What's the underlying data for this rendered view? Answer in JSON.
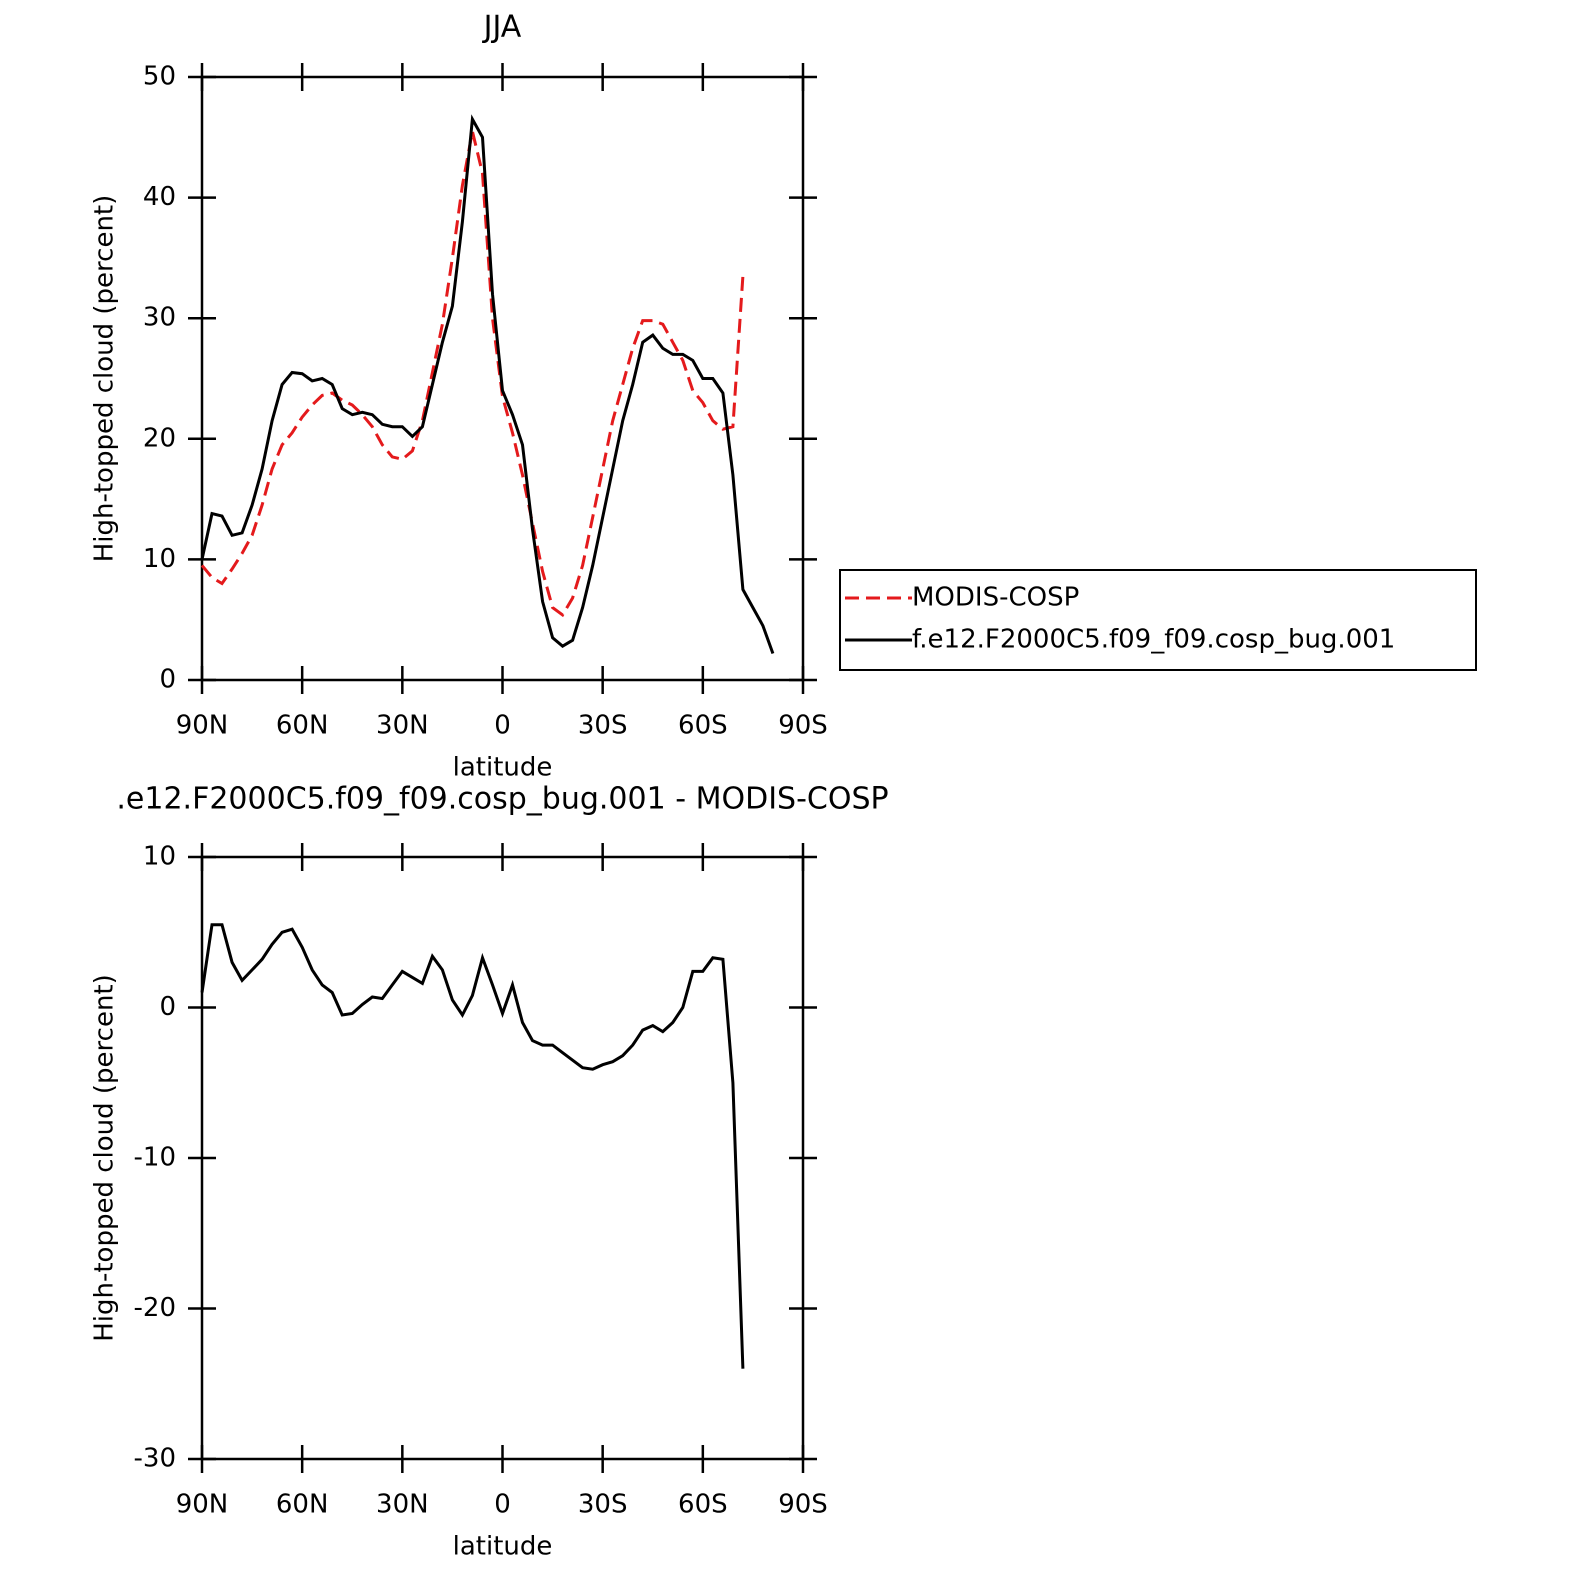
{
  "chart_data": [
    {
      "type": "line",
      "title": "JJA",
      "x_label": "latitude",
      "y_label": "High-topped cloud (percent)",
      "x": [
        90,
        87,
        84,
        81,
        78,
        75,
        72,
        69,
        66,
        63,
        60,
        57,
        54,
        51,
        48,
        45,
        42,
        39,
        36,
        33,
        30,
        27,
        24,
        21,
        18,
        15,
        12,
        9,
        6,
        3,
        0,
        -3,
        -6,
        -9,
        -12,
        -15,
        -18,
        -21,
        -24,
        -27,
        -30,
        -33,
        -36,
        -39,
        -42,
        -45,
        -48,
        -51,
        -54,
        -57,
        -60,
        -63,
        -66,
        -69,
        -72,
        -75,
        -78,
        -81
      ],
      "series": [
        {
          "name": "MODIS-COSP",
          "color": "#e41a1c",
          "style": "dashed",
          "values": [
            9.5,
            8.5,
            8.0,
            9.2,
            10.5,
            12.0,
            14.5,
            17.5,
            19.5,
            20.5,
            21.8,
            22.8,
            23.6,
            23.8,
            23.2,
            22.8,
            22.0,
            21.0,
            19.5,
            18.5,
            18.3,
            19.0,
            21.5,
            25.5,
            29.5,
            35.0,
            41.0,
            45.5,
            42.0,
            30.0,
            23.5,
            20.5,
            17.0,
            13.0,
            9.0,
            6.0,
            5.4,
            6.8,
            9.5,
            13.5,
            17.5,
            21.5,
            24.5,
            27.5,
            29.8,
            29.8,
            29.5,
            28.0,
            26.5,
            24.0,
            23.0,
            21.5,
            20.8,
            21.0,
            33.5,
            null,
            null,
            null
          ]
        },
        {
          "name": "f.e12.F2000C5.f09_f09.cosp_bug.001",
          "color": "#000000",
          "style": "solid",
          "values": [
            10.0,
            13.8,
            13.6,
            12.0,
            12.2,
            14.5,
            17.5,
            21.5,
            24.5,
            25.5,
            25.4,
            24.8,
            25.0,
            24.5,
            22.5,
            22.0,
            22.2,
            22.0,
            21.2,
            21.0,
            21.0,
            20.2,
            21.0,
            24.5,
            28.0,
            31.0,
            38.0,
            46.5,
            45.0,
            32.0,
            24.0,
            22.0,
            19.5,
            12.5,
            6.5,
            3.5,
            2.8,
            3.3,
            6.0,
            9.5,
            13.5,
            17.5,
            21.5,
            24.5,
            28.0,
            28.6,
            27.5,
            27.0,
            27.0,
            26.5,
            25.0,
            25.0,
            23.8,
            17.0,
            7.5,
            6.0,
            4.5,
            2.2
          ]
        }
      ],
      "xlim": [
        90,
        -90
      ],
      "xticks": [
        {
          "value": 90,
          "label": "90N"
        },
        {
          "value": 60,
          "label": "60N"
        },
        {
          "value": 30,
          "label": "30N"
        },
        0,
        {
          "value": -30,
          "label": "30S"
        },
        {
          "value": -60,
          "label": "60S"
        },
        {
          "value": -90,
          "label": "90S"
        }
      ],
      "ylim": [
        0,
        50
      ],
      "yticks": [
        0,
        10,
        20,
        30,
        40,
        50
      ],
      "legend": "right"
    },
    {
      "type": "line",
      "title": ".e12.F2000C5.f09_f09.cosp_bug.001 - MODIS-COSP",
      "x_label": "latitude",
      "y_label": "High-topped cloud (percent)",
      "x": [
        90,
        87,
        84,
        81,
        78,
        75,
        72,
        69,
        66,
        63,
        60,
        57,
        54,
        51,
        48,
        45,
        42,
        39,
        36,
        33,
        30,
        27,
        24,
        21,
        18,
        15,
        12,
        9,
        6,
        3,
        0,
        -3,
        -6,
        -9,
        -12,
        -15,
        -18,
        -21,
        -24,
        -27,
        -30,
        -33,
        -36,
        -39,
        -42,
        -45,
        -48,
        -51,
        -54,
        -57,
        -60,
        -63,
        -66,
        -69,
        -72
      ],
      "values": [
        1.0,
        5.5,
        5.5,
        3.0,
        1.8,
        2.5,
        3.2,
        4.2,
        5.0,
        5.2,
        4.0,
        2.5,
        1.5,
        1.0,
        -0.5,
        -0.4,
        0.2,
        0.7,
        0.6,
        1.5,
        2.4,
        2.0,
        1.6,
        3.4,
        2.5,
        0.5,
        -0.5,
        0.8,
        3.3,
        1.5,
        -0.4,
        1.5,
        -1.0,
        -2.2,
        -2.5,
        -2.5,
        -3.0,
        -3.5,
        -4.0,
        -4.1,
        -3.8,
        -3.6,
        -3.2,
        -2.5,
        -1.5,
        -1.2,
        -1.6,
        -1.0,
        0.0,
        2.4,
        2.4,
        3.3,
        3.2,
        -5.0,
        -24.0
      ],
      "color": "#000000",
      "xlim": [
        90,
        -90
      ],
      "xticks": [
        {
          "value": 90,
          "label": "90N"
        },
        {
          "value": 60,
          "label": "60N"
        },
        {
          "value": 30,
          "label": "30N"
        },
        0,
        {
          "value": -30,
          "label": "30S"
        },
        {
          "value": -60,
          "label": "60S"
        },
        {
          "value": -90,
          "label": "90S"
        }
      ],
      "ylim": [
        -30,
        10
      ],
      "yticks": [
        -30,
        -20,
        -10,
        0,
        10
      ]
    }
  ]
}
